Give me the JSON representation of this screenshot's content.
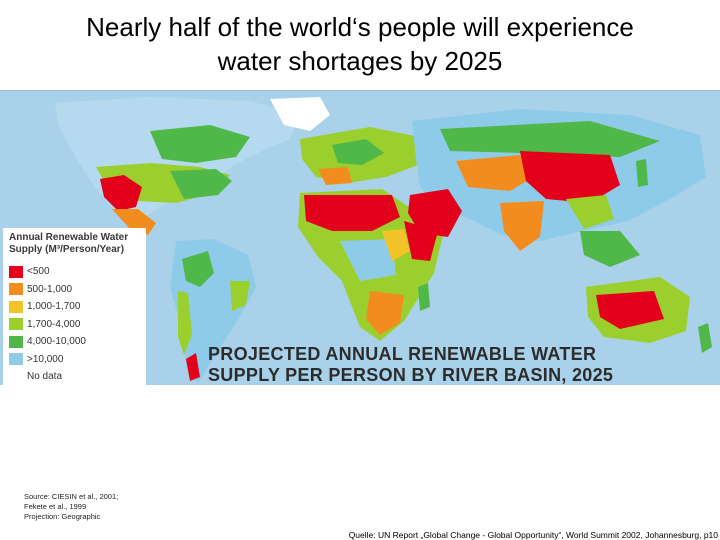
{
  "slide": {
    "title_line1": "Nearly half of the world‘s  people will experience",
    "title_line2": "water shortages by 2025"
  },
  "map": {
    "caption_line1": "PROJECTED ANNUAL RENEWABLE WATER",
    "caption_line2": "SUPPLY PER PERSON BY RIVER BASIN, 2025",
    "ocean_color": "#a9d2ea",
    "legend": {
      "title_line1": "Annual Renewable Water",
      "title_line2": "Supply (M³/Person/Year)",
      "items": [
        {
          "label": "<500",
          "color": "#e3001b"
        },
        {
          "label": "500-1,000",
          "color": "#f28c1e"
        },
        {
          "label": "1,000-1,700",
          "color": "#f2c428"
        },
        {
          "label": "1,700-4,000",
          "color": "#9bcf2e"
        },
        {
          "label": "4,000-10,000",
          "color": "#4fb848"
        },
        {
          "label": ">10,000",
          "color": "#8ecbe8"
        },
        {
          "label": "No data",
          "color": "#ffffff"
        }
      ]
    }
  },
  "source": {
    "line1": "Source: CIESIN et al., 2001;",
    "line2": "Fekete et al., 1999",
    "line3": "Projection: Geographic"
  },
  "reference": "Quelle: UN Report „Global Change - Global Opportunity“, World Summit 2002, Johannesburg,  p10"
}
